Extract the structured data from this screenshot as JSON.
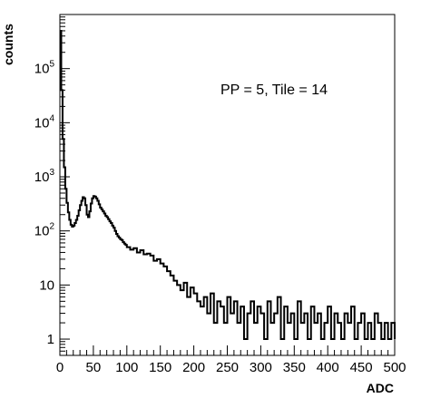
{
  "chart_data": {
    "type": "line",
    "title": "",
    "annotation": "PP = 5, Tile = 14",
    "xlabel": "ADC",
    "ylabel": "counts",
    "xlim": [
      0,
      500
    ],
    "ylim": [
      0.5,
      1000000
    ],
    "yscale": "log",
    "xticks": [
      0,
      50,
      100,
      150,
      200,
      250,
      300,
      350,
      400,
      450,
      500
    ],
    "xtick_labels": [
      "0",
      "50",
      "100",
      "150",
      "200",
      "250",
      "300",
      "350",
      "400",
      "450",
      "500"
    ],
    "yticks": [
      1,
      10,
      100,
      1000,
      10000,
      100000
    ],
    "ytick_labels": [
      {
        "base": "1",
        "exp": ""
      },
      {
        "base": "10",
        "exp": ""
      },
      {
        "base": "10",
        "exp": "2"
      },
      {
        "base": "10",
        "exp": "3"
      },
      {
        "base": "10",
        "exp": "4"
      },
      {
        "base": "10",
        "exp": "5"
      }
    ],
    "grid": false,
    "line_color": "#000000",
    "series": [
      {
        "x": [
          0,
          2,
          4,
          6,
          8,
          10,
          12,
          14,
          16,
          18,
          20,
          22,
          24,
          26,
          28,
          30,
          32,
          34,
          36,
          38,
          40,
          42,
          44,
          46,
          48,
          50,
          52,
          54,
          56,
          58,
          60,
          62,
          64,
          66,
          68,
          70,
          72,
          74,
          76,
          78,
          80,
          82,
          84,
          86,
          88,
          90,
          92,
          94,
          96,
          98,
          100,
          105,
          110,
          115,
          120,
          125,
          130,
          135,
          140,
          145,
          150,
          155,
          160,
          165,
          170,
          175,
          180,
          185,
          190,
          195,
          200,
          205,
          210,
          215,
          220,
          225,
          230,
          235,
          240,
          245,
          250,
          255,
          260,
          265,
          270,
          275,
          280,
          285,
          290,
          295,
          300,
          305,
          310,
          315,
          320,
          325,
          330,
          335,
          340,
          345,
          350,
          355,
          360,
          365,
          370,
          375,
          380,
          385,
          390,
          395,
          400,
          405,
          410,
          415,
          420,
          425,
          430,
          435,
          440,
          445,
          450,
          455,
          460,
          465,
          470,
          475,
          480,
          485,
          490,
          495,
          500
        ],
        "y": [
          500000,
          40000,
          5000,
          1500,
          600,
          330,
          220,
          160,
          130,
          120,
          125,
          140,
          160,
          190,
          240,
          300,
          360,
          420,
          400,
          300,
          200,
          180,
          230,
          320,
          400,
          440,
          430,
          400,
          360,
          310,
          270,
          250,
          230,
          210,
          190,
          180,
          165,
          150,
          140,
          125,
          115,
          100,
          88,
          80,
          75,
          70,
          68,
          62,
          58,
          55,
          50,
          45,
          48,
          40,
          44,
          37,
          38,
          35,
          28,
          30,
          25,
          22,
          18,
          15,
          12,
          10,
          8,
          11,
          6,
          9,
          7,
          5,
          4,
          6,
          3,
          7,
          2,
          5,
          4,
          2,
          6,
          3,
          5,
          2,
          4,
          1,
          3,
          5,
          2,
          4,
          3,
          1,
          5,
          2,
          3,
          6,
          1,
          4,
          2,
          3,
          1,
          5,
          2,
          3,
          1,
          4,
          2,
          3,
          1,
          2,
          4,
          1,
          3,
          2,
          1,
          3,
          2,
          4,
          1,
          2,
          3,
          1,
          2,
          1,
          3,
          2,
          1,
          2,
          1,
          2,
          1
        ]
      }
    ]
  }
}
